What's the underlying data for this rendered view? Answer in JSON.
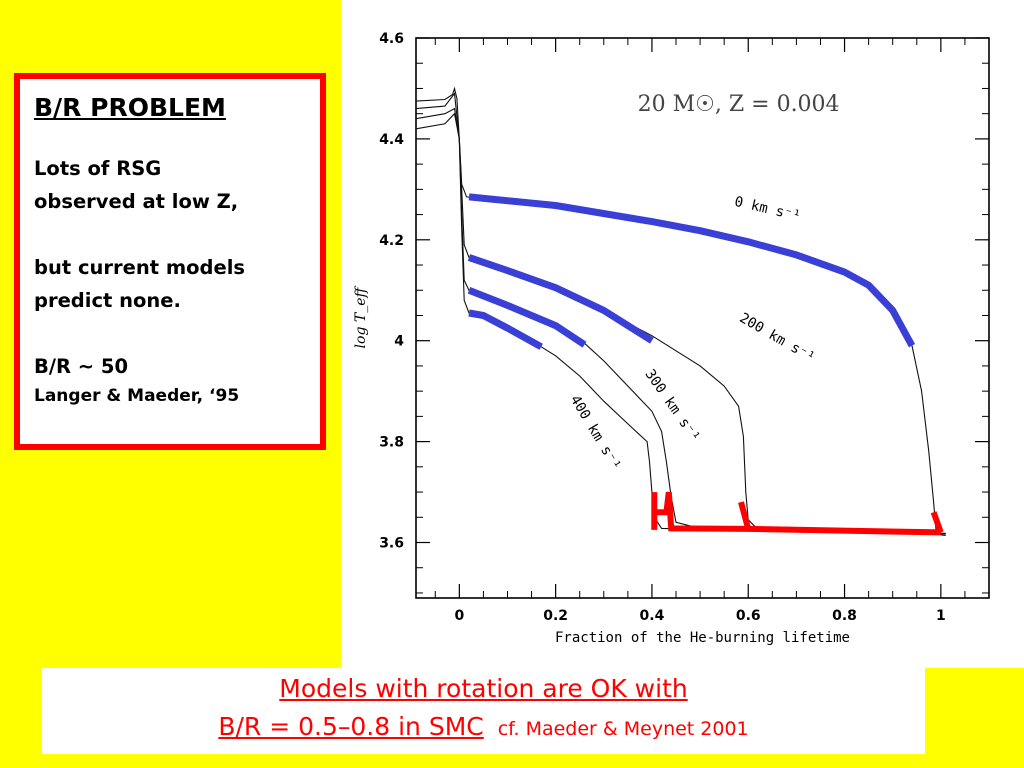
{
  "problem_box": {
    "title": "B/R  PROBLEM",
    "line1": "Lots of  RSG",
    "line2": "observed at low  Z,",
    "line3": "but current models",
    "line4": "predict none.",
    "line5": "B/R ~ 50",
    "line6": "Langer & Maeder, ‘95"
  },
  "caption": {
    "line1": "Models with rotation  are  OK with",
    "line2_main": "B/R = 0.5–0.8 in SMC",
    "line2_ref": "cf. Maeder & Meynet  2001"
  },
  "colors": {
    "background": "#ffff00",
    "box_border": "#ff0000",
    "blue_highlight": "#3a3fd6",
    "red_highlight": "#ff0000"
  },
  "chart_data": {
    "type": "line",
    "title": "20 M☉, Z = 0.004",
    "xlabel": "Fraction of the He-burning lifetime",
    "ylabel": "log T_eff",
    "xlim": [
      -0.09,
      1.1
    ],
    "ylim": [
      3.49,
      4.6
    ],
    "x_ticks": [
      "0",
      "0.2",
      "0.4",
      "0.6",
      "0.8",
      "1"
    ],
    "y_ticks": [
      "3.6",
      "3.8",
      "4",
      "4.2",
      "4.4",
      "4.6"
    ],
    "series": [
      {
        "name": "0 km s⁻¹",
        "points": [
          [
            -0.09,
            4.475
          ],
          [
            -0.03,
            4.478
          ],
          [
            -0.014,
            4.488
          ],
          [
            -0.01,
            4.5
          ],
          [
            -0.005,
            4.48
          ],
          [
            0,
            4.4
          ],
          [
            0.005,
            4.31
          ],
          [
            0.015,
            4.285
          ],
          [
            0.1,
            4.277
          ],
          [
            0.2,
            4.266
          ],
          [
            0.3,
            4.253
          ],
          [
            0.4,
            4.237
          ],
          [
            0.5,
            4.218
          ],
          [
            0.6,
            4.196
          ],
          [
            0.7,
            4.17
          ],
          [
            0.8,
            4.136
          ],
          [
            0.85,
            4.11
          ],
          [
            0.9,
            4.06
          ],
          [
            0.94,
            3.99
          ],
          [
            0.96,
            3.9
          ],
          [
            0.975,
            3.78
          ],
          [
            0.985,
            3.68
          ],
          [
            0.99,
            3.625
          ],
          [
            1.0,
            3.615
          ],
          [
            1.01,
            3.614
          ]
        ],
        "label_text": "0 km s⁻¹"
      },
      {
        "name": "200 km s⁻¹",
        "points": [
          [
            -0.09,
            4.46
          ],
          [
            -0.03,
            4.465
          ],
          [
            -0.01,
            4.49
          ],
          [
            0,
            4.4
          ],
          [
            0.005,
            4.3
          ],
          [
            0.01,
            4.19
          ],
          [
            0.02,
            4.165
          ],
          [
            0.05,
            4.155
          ],
          [
            0.1,
            4.139
          ],
          [
            0.2,
            4.105
          ],
          [
            0.3,
            4.06
          ],
          [
            0.4,
            4.01
          ],
          [
            0.45,
            3.98
          ],
          [
            0.5,
            3.95
          ],
          [
            0.55,
            3.91
          ],
          [
            0.58,
            3.87
          ],
          [
            0.59,
            3.81
          ],
          [
            0.595,
            3.7
          ],
          [
            0.6,
            3.645
          ],
          [
            0.62,
            3.626
          ],
          [
            1.01,
            3.618
          ]
        ],
        "label_text": "200 km s⁻¹"
      },
      {
        "name": "300 km s⁻¹",
        "points": [
          [
            -0.09,
            4.44
          ],
          [
            -0.03,
            4.45
          ],
          [
            -0.01,
            4.46
          ],
          [
            0,
            4.4
          ],
          [
            0.005,
            4.25
          ],
          [
            0.01,
            4.12
          ],
          [
            0.02,
            4.1
          ],
          [
            0.1,
            4.07
          ],
          [
            0.2,
            4.03
          ],
          [
            0.26,
            3.995
          ],
          [
            0.3,
            3.96
          ],
          [
            0.35,
            3.91
          ],
          [
            0.4,
            3.86
          ],
          [
            0.42,
            3.82
          ],
          [
            0.43,
            3.76
          ],
          [
            0.44,
            3.69
          ],
          [
            0.45,
            3.64
          ],
          [
            0.5,
            3.628
          ],
          [
            1.01,
            3.618
          ]
        ],
        "label_text": "300 km s⁻¹"
      },
      {
        "name": "400 km s⁻¹",
        "points": [
          [
            -0.09,
            4.42
          ],
          [
            -0.03,
            4.43
          ],
          [
            -0.01,
            4.45
          ],
          [
            0,
            4.4
          ],
          [
            0.005,
            4.22
          ],
          [
            0.01,
            4.08
          ],
          [
            0.02,
            4.055
          ],
          [
            0.05,
            4.05
          ],
          [
            0.1,
            4.025
          ],
          [
            0.17,
            3.988
          ],
          [
            0.2,
            3.97
          ],
          [
            0.25,
            3.93
          ],
          [
            0.3,
            3.88
          ],
          [
            0.35,
            3.835
          ],
          [
            0.39,
            3.8
          ],
          [
            0.395,
            3.76
          ],
          [
            0.4,
            3.7
          ],
          [
            0.405,
            3.65
          ],
          [
            0.42,
            3.628
          ],
          [
            1.01,
            3.617
          ]
        ],
        "label_text": "400 km s⁻¹"
      }
    ],
    "blue_segments": [
      [
        [
          0.02,
          4.285
        ],
        [
          0.2,
          4.268
        ],
        [
          0.4,
          4.236
        ],
        [
          0.5,
          4.218
        ],
        [
          0.6,
          4.196
        ],
        [
          0.7,
          4.17
        ],
        [
          0.8,
          4.136
        ],
        [
          0.85,
          4.11
        ],
        [
          0.9,
          4.06
        ],
        [
          0.94,
          3.99
        ]
      ],
      [
        [
          0.02,
          4.165
        ],
        [
          0.1,
          4.139
        ],
        [
          0.2,
          4.105
        ],
        [
          0.3,
          4.06
        ],
        [
          0.4,
          4.0
        ]
      ],
      [
        [
          0.02,
          4.1
        ],
        [
          0.1,
          4.07
        ],
        [
          0.2,
          4.03
        ],
        [
          0.26,
          3.992
        ]
      ],
      [
        [
          0.02,
          4.055
        ],
        [
          0.05,
          4.05
        ],
        [
          0.1,
          4.025
        ],
        [
          0.17,
          3.988
        ]
      ]
    ],
    "red_segments": [
      [
        [
          0.405,
          3.7
        ],
        [
          0.405,
          3.625
        ]
      ],
      [
        [
          0.405,
          3.66
        ],
        [
          0.43,
          3.66
        ],
        [
          0.435,
          3.7
        ],
        [
          0.44,
          3.628
        ],
        [
          0.6,
          3.627
        ],
        [
          1.0,
          3.62
        ]
      ],
      [
        [
          0.585,
          3.68
        ],
        [
          0.6,
          3.627
        ]
      ],
      [
        [
          0.985,
          3.66
        ],
        [
          1.0,
          3.62
        ]
      ]
    ]
  }
}
